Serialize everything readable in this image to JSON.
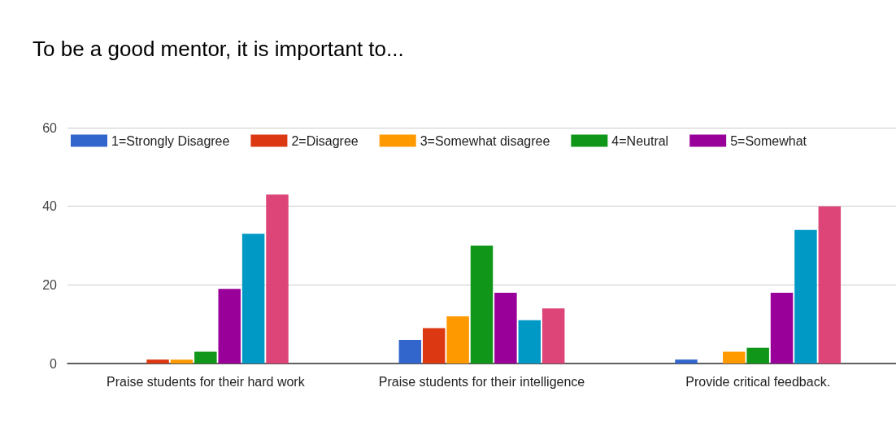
{
  "chart_data": {
    "type": "bar",
    "title": "To be a good mentor, it is important to...",
    "categories": [
      "Praise students for their hard work",
      "Praise students for their intelligence",
      "Provide critical feedback."
    ],
    "series": [
      {
        "name": "1=Strongly Disagree",
        "color": "#3366cc",
        "values": [
          0,
          6,
          1
        ]
      },
      {
        "name": "2=Disagree",
        "color": "#dc3912",
        "values": [
          1,
          9,
          0
        ]
      },
      {
        "name": "3=Somewhat disagree",
        "color": "#ff9900",
        "values": [
          1,
          12,
          3
        ]
      },
      {
        "name": "4=Neutral",
        "color": "#109618",
        "values": [
          3,
          30,
          4
        ]
      },
      {
        "name": "5=Somewhat",
        "color": "#990099",
        "values": [
          19,
          18,
          18
        ]
      },
      {
        "color": "#0099c6",
        "values": [
          33,
          11,
          34
        ]
      },
      {
        "color": "#dd4477",
        "values": [
          43,
          14,
          40
        ]
      }
    ],
    "ylim": [
      0,
      60
    ],
    "yticks": [
      0,
      20,
      40,
      60
    ],
    "grid": "y",
    "legend": "top"
  }
}
